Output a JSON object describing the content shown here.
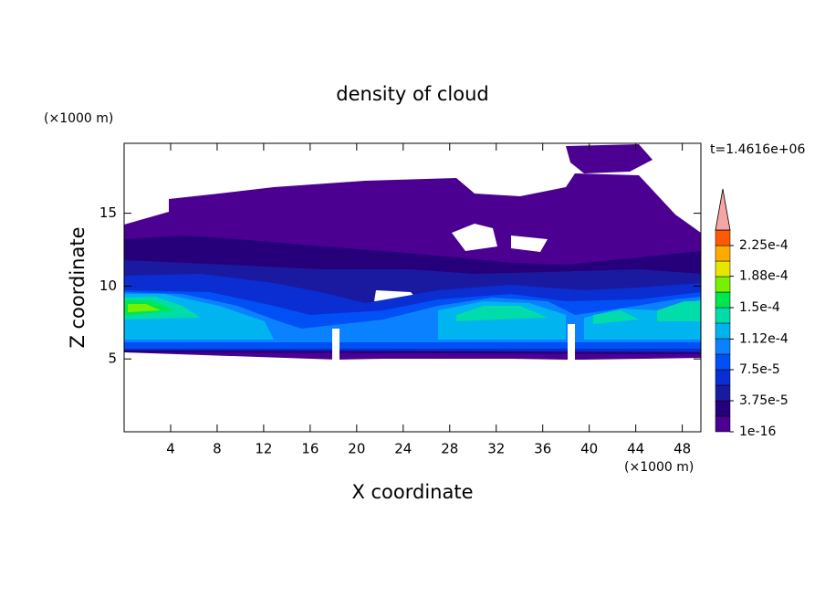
{
  "chart_data": {
    "type": "contour",
    "title": "density of cloud",
    "x_label": "X coordinate",
    "y_label": "Z coordinate",
    "x_unit": "(×1000 m)",
    "y_unit": "(×1000 m)",
    "annotation": "t=1.4616e+06",
    "xlim": [
      0,
      49.6
    ],
    "ylim": [
      0,
      19.8
    ],
    "xticks": [
      4,
      8,
      12,
      16,
      20,
      24,
      28,
      32,
      36,
      40,
      44,
      48
    ],
    "yticks": [
      5,
      10,
      15
    ],
    "colorbar": {
      "levels": [
        1e-16,
        1.875e-05,
        3.75e-05,
        5.625e-05,
        7.5e-05,
        9.375e-05,
        0.0001125,
        0.00013125,
        0.00015,
        0.00016875,
        0.0001875,
        0.00020625,
        0.000225,
        0.00024375
      ],
      "colors": [
        "#4b0091",
        "#26007a",
        "#1a1aa0",
        "#0a2ed2",
        "#0050f5",
        "#0a82ff",
        "#00b4f0",
        "#00dcaa",
        "#00e650",
        "#78f000",
        "#e6e600",
        "#ffaa00",
        "#ff5a00"
      ],
      "extend_color": "#f4a6a6",
      "ticks": [
        {
          "value": 1e-16,
          "label": "1e-16"
        },
        {
          "value": 3.75e-05,
          "label": "3.75e-5"
        },
        {
          "value": 7.5e-05,
          "label": "7.5e-5"
        },
        {
          "value": 0.000112,
          "label": "1.12e-4"
        },
        {
          "value": 0.00015,
          "label": "1.5e-4"
        },
        {
          "value": 0.000188,
          "label": "1.88e-4"
        },
        {
          "value": 0.000225,
          "label": "2.25e-4"
        }
      ]
    }
  }
}
